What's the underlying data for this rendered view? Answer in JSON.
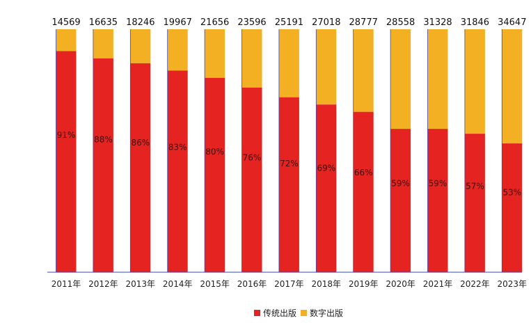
{
  "chart_data": {
    "type": "bar",
    "stacked": "percent",
    "categories": [
      "2011年",
      "2012年",
      "2013年",
      "2014年",
      "2015年",
      "2016年",
      "2017年",
      "2018年",
      "2019年",
      "2020年",
      "2021年",
      "2022年",
      "2023年"
    ],
    "totals": [
      "14569",
      "16635",
      "18246",
      "19967",
      "21656",
      "23596",
      "25191",
      "27018",
      "28777",
      "28558",
      "31328",
      "31846",
      "34647"
    ],
    "series": [
      {
        "name": "传统出版",
        "color": "#e52421",
        "values": [
          91,
          88,
          86,
          83,
          80,
          76,
          72,
          69,
          66,
          59,
          59,
          57,
          53
        ]
      },
      {
        "name": "数字出版",
        "color": "#f3b022",
        "values": [
          9,
          12,
          14,
          17,
          20,
          24,
          28,
          31,
          34,
          41,
          41,
          43,
          47
        ]
      }
    ],
    "pct_labels": [
      "91%",
      "88%",
      "86%",
      "83%",
      "80%",
      "76%",
      "72%",
      "69%",
      "66%",
      "59%",
      "59%",
      "57%",
      "53%"
    ],
    "ylim": [
      0,
      100
    ],
    "legend_position": "bottom",
    "axis_color": "#3b4bb0"
  },
  "legend": [
    {
      "label": "传统出版",
      "color": "#e52421"
    },
    {
      "label": "数字出版",
      "color": "#f3b022"
    }
  ]
}
